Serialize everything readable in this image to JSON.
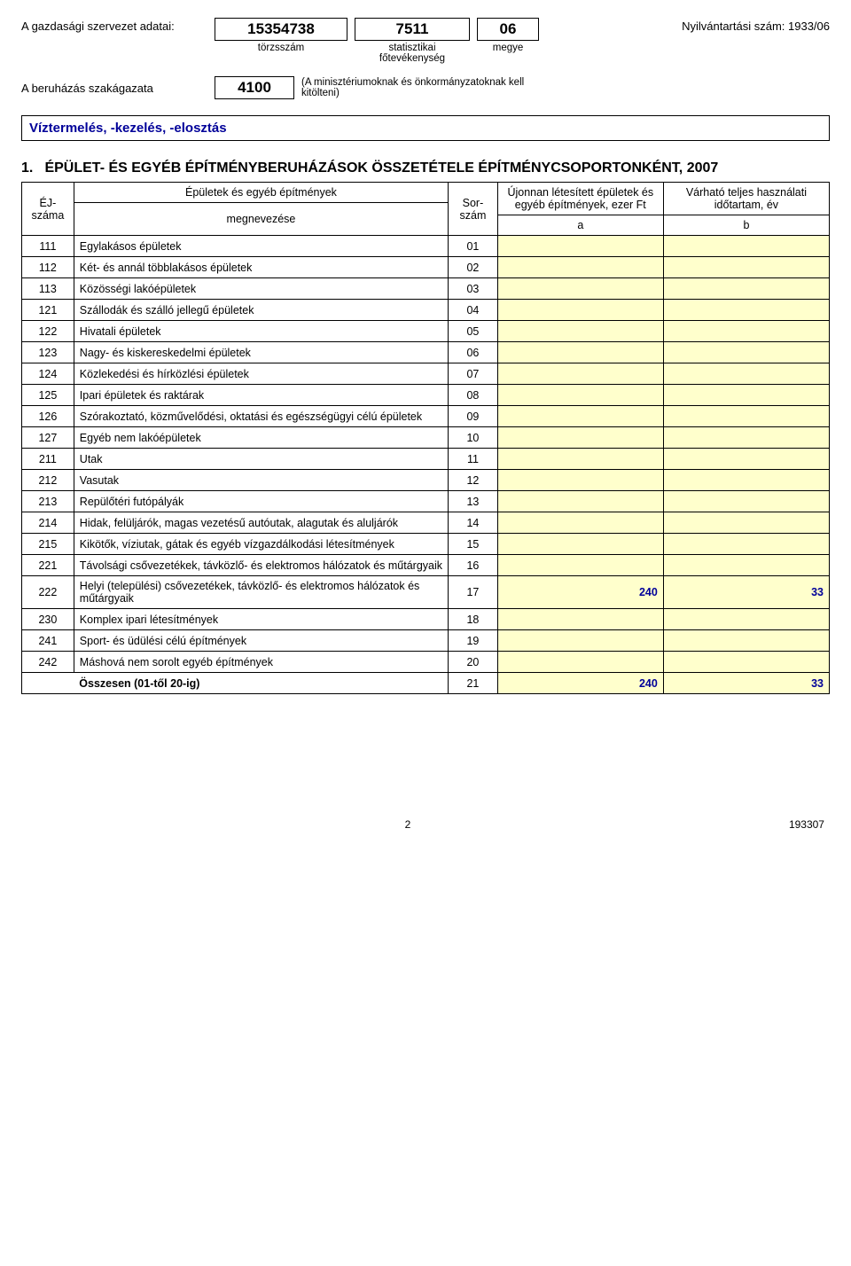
{
  "header": {
    "org_label": "A gazdasági szervezet adatai:",
    "torzsszam": {
      "value": "15354738",
      "caption": "törzsszám"
    },
    "fotev": {
      "value": "7511",
      "caption": "statisztikai főtevékenység"
    },
    "megye": {
      "value": "06",
      "caption": "megye"
    },
    "reg_no_label": "Nyilvántartási szám: 1933/06",
    "sector_label": "A beruházás szakágazata",
    "sector_value": "4100",
    "ministry_note": "(A minisztériumoknak és önkormányzatoknak kell kitölteni)",
    "activity": "Víztermelés, -kezelés, -elosztás"
  },
  "section": {
    "number": "1.",
    "title": "ÉPÜLET- ÉS EGYÉB ÉPÍTMÉNYBERUHÁZÁSOK ÖSSZETÉTELE ÉPÍTMÉNYCSOPORTONKÉNT, 2007"
  },
  "table": {
    "head": {
      "ej": "ÉJ-száma",
      "group": "Épületek és egyéb építmények",
      "name": "megnevezése",
      "sor": "Sor-szám",
      "col_a_top": "Újonnan létesített épületek és egyéb építmények, ezer Ft",
      "col_b_top": "Várható teljes használati időtartam, év",
      "a": "a",
      "b": "b"
    },
    "rows": [
      {
        "ej": "111",
        "name": "Egylakásos épületek",
        "sor": "01",
        "a": "",
        "b": ""
      },
      {
        "ej": "112",
        "name": "Két- és annál többlakásos épületek",
        "sor": "02",
        "a": "",
        "b": ""
      },
      {
        "ej": "113",
        "name": "Közösségi lakóépületek",
        "sor": "03",
        "a": "",
        "b": ""
      },
      {
        "ej": "121",
        "name": "Szállodák és szálló jellegű épületek",
        "sor": "04",
        "a": "",
        "b": ""
      },
      {
        "ej": "122",
        "name": "Hivatali épületek",
        "sor": "05",
        "a": "",
        "b": ""
      },
      {
        "ej": "123",
        "name": "Nagy- és kiskereskedelmi épületek",
        "sor": "06",
        "a": "",
        "b": ""
      },
      {
        "ej": "124",
        "name": "Közlekedési és hírközlési épületek",
        "sor": "07",
        "a": "",
        "b": ""
      },
      {
        "ej": "125",
        "name": "Ipari épületek és raktárak",
        "sor": "08",
        "a": "",
        "b": ""
      },
      {
        "ej": "126",
        "name": "Szórakoztató, közművelődési, oktatási és egészségügyi célú épületek",
        "sor": "09",
        "a": "",
        "b": ""
      },
      {
        "ej": "127",
        "name": "Egyéb nem lakóépületek",
        "sor": "10",
        "a": "",
        "b": ""
      },
      {
        "ej": "211",
        "name": "Utak",
        "sor": "11",
        "a": "",
        "b": ""
      },
      {
        "ej": "212",
        "name": "Vasutak",
        "sor": "12",
        "a": "",
        "b": ""
      },
      {
        "ej": "213",
        "name": "Repülőtéri futópályák",
        "sor": "13",
        "a": "",
        "b": ""
      },
      {
        "ej": "214",
        "name": "Hidak, felüljárók, magas vezetésű autóutak, alagutak és aluljárók",
        "sor": "14",
        "a": "",
        "b": ""
      },
      {
        "ej": "215",
        "name": "Kikötők, víziutak, gátak és egyéb vízgazdálkodási létesítmények",
        "sor": "15",
        "a": "",
        "b": ""
      },
      {
        "ej": "221",
        "name": "Távolsági csővezetékek, távközlő- és elektromos hálózatok és műtárgyaik",
        "sor": "16",
        "a": "",
        "b": ""
      },
      {
        "ej": "222",
        "name": "Helyi (települési) csővezetékek, távközlő- és elektromos hálózatok és műtárgyaik",
        "sor": "17",
        "a": "240",
        "b": "33"
      },
      {
        "ej": "230",
        "name": "Komplex ipari létesítmények",
        "sor": "18",
        "a": "",
        "b": ""
      },
      {
        "ej": "241",
        "name": "Sport- és üdülési célú építmények",
        "sor": "19",
        "a": "",
        "b": ""
      },
      {
        "ej": "242",
        "name": "Máshová nem sorolt egyéb építmények",
        "sor": "20",
        "a": "",
        "b": ""
      }
    ],
    "summary": {
      "label": "Összesen (01-től 20-ig)",
      "sor": "21",
      "a": "240",
      "b": "33"
    }
  },
  "footer": {
    "page": "2",
    "code": "193307"
  },
  "colors": {
    "input_bg": "#ffffcc",
    "value_color": "#000099",
    "border": "#000000",
    "background": "#ffffff"
  }
}
